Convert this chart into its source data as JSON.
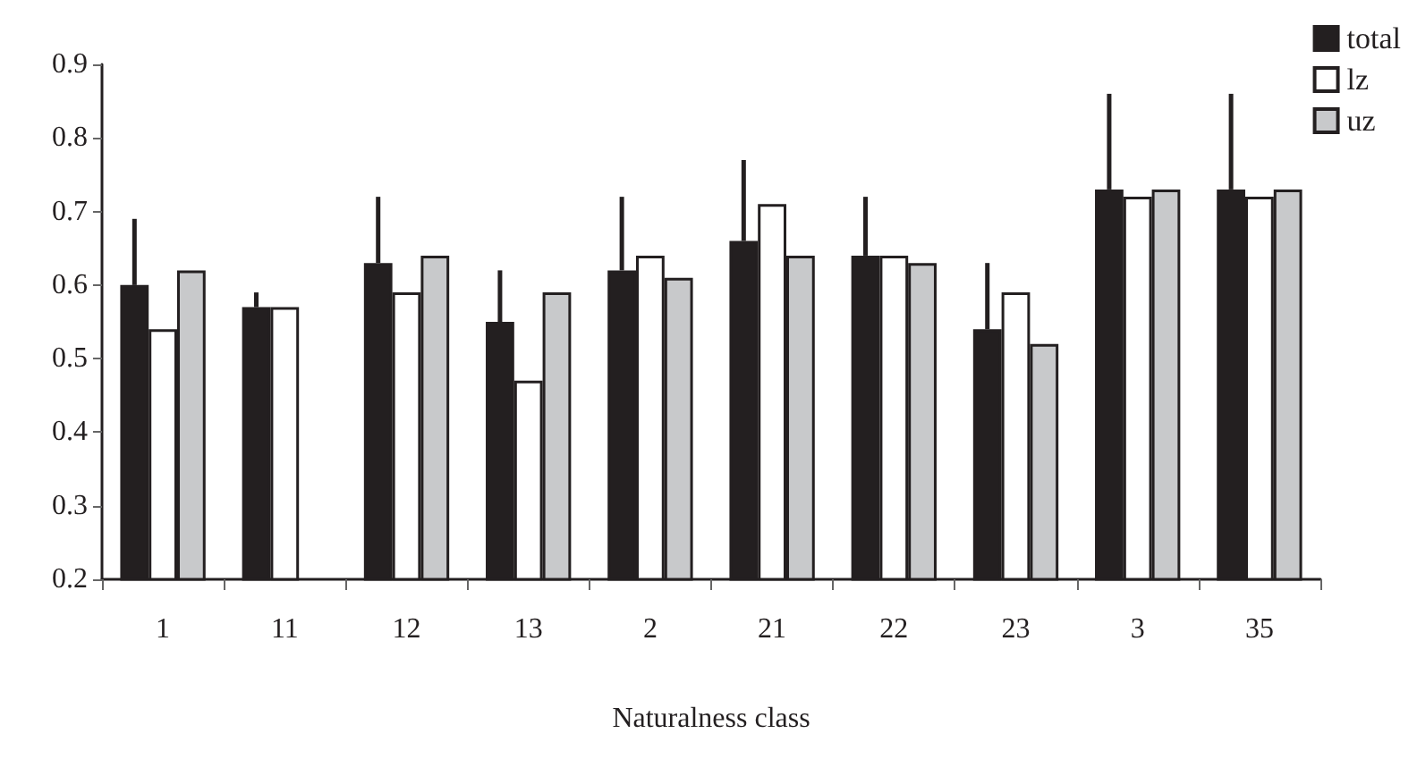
{
  "chart_data": {
    "type": "bar",
    "xlabel": "Naturalness class",
    "categories": [
      "1",
      "11",
      "12",
      "13",
      "2",
      "21",
      "22",
      "23",
      "3",
      "35"
    ],
    "series": [
      {
        "name": "total",
        "color": "#231f20",
        "values": [
          0.6,
          0.57,
          0.63,
          0.55,
          0.62,
          0.66,
          0.64,
          0.54,
          0.73,
          0.73
        ],
        "errors": [
          [
            0.6,
            0.69
          ],
          [
            0.57,
            0.59
          ],
          [
            0.63,
            0.72
          ],
          [
            0.55,
            0.62
          ],
          [
            0.62,
            0.72
          ],
          [
            0.66,
            0.77
          ],
          [
            0.64,
            0.72
          ],
          [
            0.54,
            0.63
          ],
          [
            0.73,
            0.86
          ],
          [
            0.73,
            0.86
          ]
        ]
      },
      {
        "name": "lz",
        "color": "#ffffff",
        "values": [
          0.54,
          0.57,
          0.59,
          0.47,
          0.64,
          0.71,
          0.64,
          0.59,
          0.72,
          0.72
        ]
      },
      {
        "name": "uz",
        "color": "#c8c9cb",
        "values": [
          0.62,
          null,
          0.64,
          0.59,
          0.61,
          0.64,
          0.63,
          0.52,
          0.73,
          0.73
        ]
      }
    ],
    "ylim": [
      0.2,
      0.9
    ],
    "yticks": [
      0.2,
      0.3,
      0.4,
      0.5,
      0.6,
      0.7,
      0.8,
      0.9
    ],
    "grid": false,
    "legend": "top right"
  }
}
